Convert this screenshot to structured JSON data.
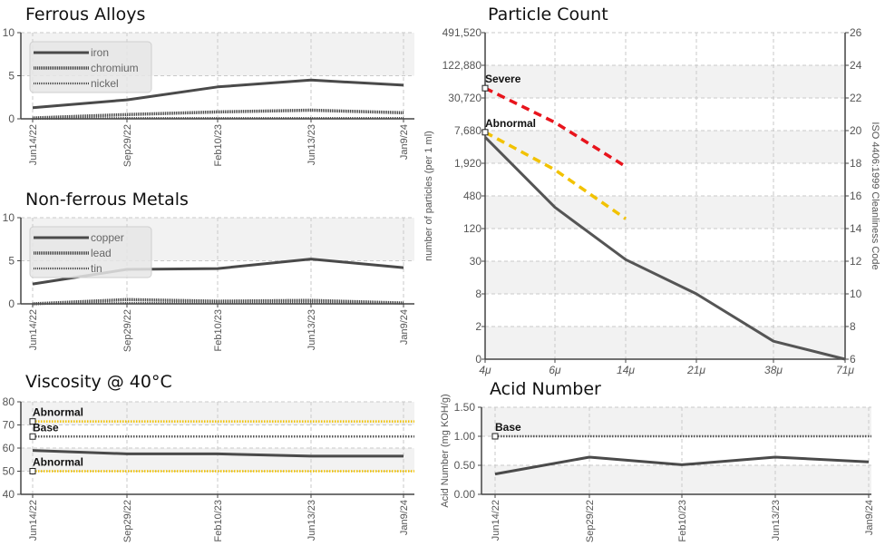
{
  "chart_data": [
    {
      "id": "ferrous",
      "type": "line",
      "title": "Ferrous Alloys",
      "categories": [
        "Jun14/22",
        "Sep29/22",
        "Feb10/23",
        "Jun13/23",
        "Jan9/24"
      ],
      "ylim": [
        0,
        10
      ],
      "yticks": [
        0,
        5,
        10
      ],
      "grid": true,
      "legend_position": "top-left",
      "series": [
        {
          "name": "iron",
          "values": [
            1.3,
            2.2,
            3.7,
            4.5,
            3.9
          ],
          "style": "solid"
        },
        {
          "name": "chromium",
          "values": [
            0.1,
            0.5,
            0.8,
            1.0,
            0.7
          ],
          "style": "dense-dash"
        },
        {
          "name": "nickel",
          "values": [
            0.0,
            0.1,
            0.1,
            0.1,
            0.1
          ],
          "style": "fine-dash"
        }
      ]
    },
    {
      "id": "nonferrous",
      "type": "line",
      "title": "Non-ferrous Metals",
      "categories": [
        "Jun14/22",
        "Sep29/22",
        "Feb10/23",
        "Jun13/23",
        "Jan9/24"
      ],
      "ylim": [
        0,
        10
      ],
      "yticks": [
        0,
        5,
        10
      ],
      "grid": true,
      "legend_position": "top-left",
      "series": [
        {
          "name": "copper",
          "values": [
            2.3,
            4.0,
            4.1,
            5.2,
            4.2
          ],
          "style": "solid"
        },
        {
          "name": "lead",
          "values": [
            0.0,
            0.5,
            0.3,
            0.4,
            0.1
          ],
          "style": "dense-dash"
        },
        {
          "name": "tin",
          "values": [
            0.0,
            0.1,
            0.1,
            0.1,
            0.1
          ],
          "style": "fine-dash"
        }
      ]
    },
    {
      "id": "viscosity",
      "type": "line",
      "title": "Viscosity @ 40°C",
      "categories": [
        "Jun14/22",
        "Sep29/22",
        "Feb10/23",
        "Jun13/23",
        "Jan9/24"
      ],
      "ylim": [
        40,
        80
      ],
      "yticks": [
        40,
        50,
        60,
        70,
        80
      ],
      "grid": true,
      "series": [
        {
          "name": "",
          "values": [
            59,
            57.5,
            57.5,
            56.5,
            56.5
          ],
          "style": "solid"
        }
      ],
      "reference_lines": [
        {
          "label": "Abnormal",
          "value": 71.5,
          "color": "#f2c200",
          "style": "dotted"
        },
        {
          "label": "Base",
          "value": 65,
          "color": "#555555",
          "style": "dotted"
        },
        {
          "label": "Abnormal",
          "value": 50,
          "color": "#f2c200",
          "style": "dotted"
        }
      ]
    },
    {
      "id": "particle",
      "type": "line",
      "title": "Particle Count",
      "categories": [
        "4μ",
        "6μ",
        "14μ",
        "21μ",
        "38μ",
        "71μ"
      ],
      "ylabel": "number of particles (per 1 ml)",
      "ylabel_right": "ISO 4406:1999 Cleanliness Code",
      "y_scale": "log2",
      "yticks": [
        "0",
        "2",
        "8",
        "30",
        "120",
        "480",
        "1,920",
        "7,680",
        "30,720",
        "122,880",
        "491,520"
      ],
      "yticks_right": [
        6,
        8,
        10,
        12,
        14,
        16,
        18,
        20,
        22,
        24,
        26
      ],
      "ylim_right": [
        6,
        26
      ],
      "grid": true,
      "series": [
        {
          "name": "",
          "values_code": [
            19.6,
            15.3,
            12.1,
            10.0,
            7.1,
            6.0
          ],
          "color": "#555555",
          "style": "solid"
        },
        {
          "name": "",
          "label": "Severe",
          "values_code": [
            22.6,
            20.5,
            17.8
          ],
          "color": "#e8141c",
          "style": "dashed"
        },
        {
          "name": "",
          "label": "Abnormal",
          "values_code": [
            19.9,
            17.6,
            14.6
          ],
          "color": "#f2c200",
          "style": "dashed"
        }
      ]
    },
    {
      "id": "acid",
      "type": "line",
      "title": "Acid Number",
      "categories": [
        "Jun14/22",
        "Sep29/22",
        "Feb10/23",
        "Jun13/23",
        "Jan9/24"
      ],
      "ylabel": "Acid Number (mg KOH/g)",
      "ylim": [
        0,
        1.5
      ],
      "yticks": [
        "0.00",
        "0.50",
        "1.00",
        "1.50"
      ],
      "grid": true,
      "series": [
        {
          "name": "",
          "values": [
            0.35,
            0.64,
            0.51,
            0.64,
            0.56
          ],
          "style": "solid"
        }
      ],
      "reference_lines": [
        {
          "label": "Base",
          "value": 1.0,
          "color": "#555555",
          "style": "dotted"
        }
      ]
    }
  ]
}
